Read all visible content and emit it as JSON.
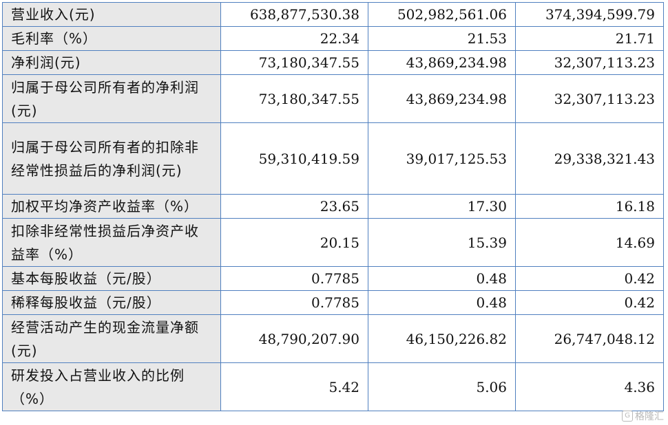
{
  "rows": [
    {
      "label": "营业收入(元)",
      "values": [
        "638,877,530.38",
        "502,982,561.06",
        "374,394,599.79"
      ]
    },
    {
      "label": "毛利率（%）",
      "values": [
        "22.34",
        "21.53",
        "21.71"
      ]
    },
    {
      "label": "净利润(元)",
      "values": [
        "73,180,347.55",
        "43,869,234.98",
        "32,307,113.23"
      ]
    },
    {
      "label": "归属于母公司所有者的净利润(元)",
      "values": [
        "73,180,347.55",
        "43,869,234.98",
        "32,307,113.23"
      ]
    },
    {
      "label": "归属于母公司所有者的扣除非经常性损益后的净利润(元)",
      "values": [
        "59,310,419.59",
        "39,017,125.53",
        "29,338,321.43"
      ]
    },
    {
      "label": "加权平均净资产收益率（%）",
      "values": [
        "23.65",
        "17.30",
        "16.18"
      ]
    },
    {
      "label": "扣除非经常性损益后净资产收益率（%）",
      "values": [
        "20.15",
        "15.39",
        "14.69"
      ]
    },
    {
      "label": "基本每股收益（元/股）",
      "values": [
        "0.7785",
        "0.48",
        "0.42"
      ]
    },
    {
      "label": "稀释每股收益（元/股）",
      "values": [
        "0.7785",
        "0.48",
        "0.42"
      ]
    },
    {
      "label": "经营活动产生的现金流量净额(元)",
      "values": [
        "48,790,207.90",
        "46,150,226.82",
        "26,747,048.12"
      ]
    },
    {
      "label": "研发投入占营业收入的比例（%）",
      "values": [
        "5.42",
        "5.06",
        "4.36"
      ]
    }
  ],
  "watermark": {
    "text": "格隆汇",
    "logo": "G"
  }
}
